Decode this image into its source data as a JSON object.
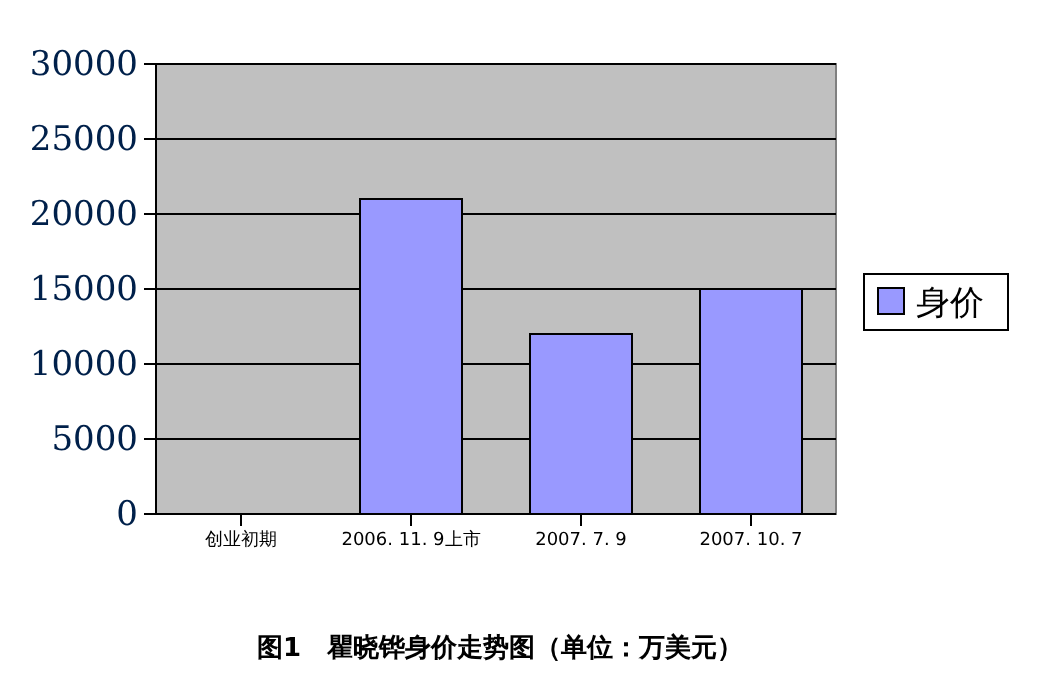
{
  "chart_data": {
    "type": "bar",
    "title": "图1　瞿晓铧身价走势图（单位：万美元）",
    "categories": [
      "创业初期",
      "2006. 11. 9上市",
      "2007. 7. 9",
      "2007. 10. 7"
    ],
    "series": [
      {
        "name": "身价",
        "color": "#9999ff",
        "values": [
          0,
          21000,
          12000,
          15000
        ]
      }
    ],
    "ylim": [
      0,
      30000
    ],
    "yticks": [
      0,
      5000,
      10000,
      15000,
      20000,
      25000,
      30000
    ],
    "grid": "y",
    "legend": "right"
  }
}
